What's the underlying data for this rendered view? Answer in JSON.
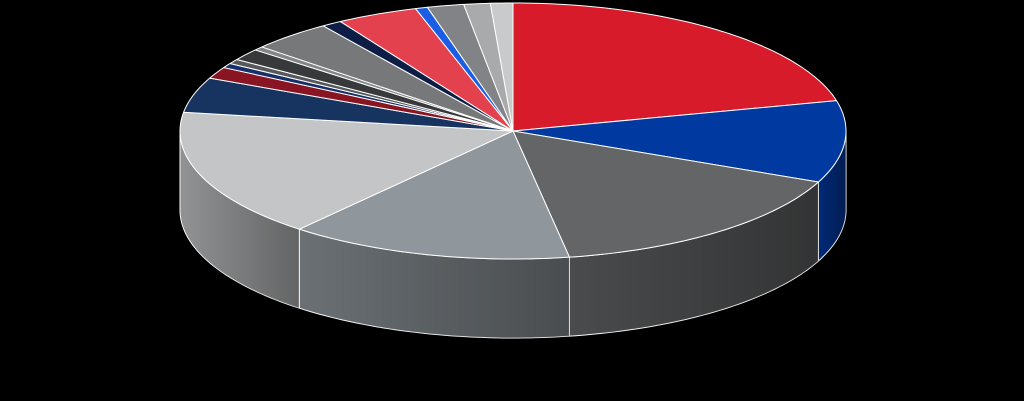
{
  "chart_data": {
    "type": "pie",
    "style": "3d",
    "labels_shown": false,
    "legend": "none",
    "slices": [
      {
        "value": 21.5,
        "color": "#d71b2b"
      },
      {
        "value": 10.5,
        "color": "#0039a0"
      },
      {
        "value": 16.0,
        "color": "#646567"
      },
      {
        "value": 14.0,
        "color": "#8f979c"
      },
      {
        "value": 16.5,
        "color": "#c4c5c7"
      },
      {
        "value": 4.5,
        "color": "#16345f"
      },
      {
        "value": 1.5,
        "color": "#8a1522"
      },
      {
        "value": 0.6,
        "color": "#15306b"
      },
      {
        "value": 0.6,
        "color": "#56585a"
      },
      {
        "value": 1.5,
        "color": "#38393b"
      },
      {
        "value": 0.5,
        "color": "#838587"
      },
      {
        "value": 4.0,
        "color": "#76787a"
      },
      {
        "value": 1.0,
        "color": "#0e1d45"
      },
      {
        "value": 4.0,
        "color": "#e3414e"
      },
      {
        "value": 0.6,
        "color": "#1b5ee3"
      },
      {
        "value": 1.8,
        "color": "#818386"
      },
      {
        "value": 1.3,
        "color": "#a8aaac"
      },
      {
        "value": 1.1,
        "color": "#c9cacb"
      }
    ]
  }
}
